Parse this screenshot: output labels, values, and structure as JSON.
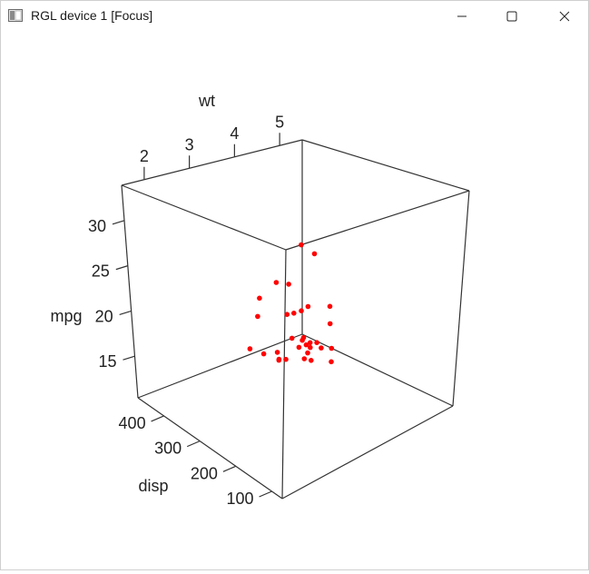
{
  "window": {
    "title": "RGL device 1 [Focus]",
    "icon": "rgl-window-icon",
    "controls": [
      "minimize-icon",
      "maximize-icon",
      "close-icon"
    ]
  },
  "colors": {
    "points": "#ff0000",
    "axes": "#333333",
    "text": "#222222"
  },
  "chart_data": {
    "type": "scatter",
    "title": "",
    "axes": {
      "wt": {
        "label": "wt",
        "ticks": [
          2,
          3,
          4,
          5
        ],
        "range": [
          1.5,
          5.5
        ]
      },
      "mpg": {
        "label": "mpg",
        "ticks": [
          15,
          20,
          25,
          30
        ],
        "range": [
          10.4,
          33.9
        ]
      },
      "disp": {
        "label": "disp",
        "ticks": [
          100,
          200,
          300,
          400
        ],
        "range": [
          71.1,
          472
        ]
      }
    },
    "points": [
      {
        "wt": 2.62,
        "mpg": 21.0,
        "disp": 160
      },
      {
        "wt": 2.875,
        "mpg": 21.0,
        "disp": 160
      },
      {
        "wt": 2.32,
        "mpg": 22.8,
        "disp": 108
      },
      {
        "wt": 3.215,
        "mpg": 21.4,
        "disp": 258
      },
      {
        "wt": 3.44,
        "mpg": 18.7,
        "disp": 360
      },
      {
        "wt": 3.46,
        "mpg": 18.1,
        "disp": 225
      },
      {
        "wt": 3.57,
        "mpg": 14.3,
        "disp": 360
      },
      {
        "wt": 3.19,
        "mpg": 24.4,
        "disp": 146.7
      },
      {
        "wt": 3.15,
        "mpg": 22.8,
        "disp": 140.8
      },
      {
        "wt": 3.44,
        "mpg": 19.2,
        "disp": 167.6
      },
      {
        "wt": 3.44,
        "mpg": 17.8,
        "disp": 167.6
      },
      {
        "wt": 4.07,
        "mpg": 16.4,
        "disp": 275.8
      },
      {
        "wt": 3.73,
        "mpg": 17.3,
        "disp": 275.8
      },
      {
        "wt": 3.78,
        "mpg": 15.2,
        "disp": 275.8
      },
      {
        "wt": 5.25,
        "mpg": 10.4,
        "disp": 472
      },
      {
        "wt": 5.424,
        "mpg": 10.4,
        "disp": 460
      },
      {
        "wt": 5.345,
        "mpg": 14.7,
        "disp": 440
      },
      {
        "wt": 2.2,
        "mpg": 32.4,
        "disp": 78.7
      },
      {
        "wt": 1.615,
        "mpg": 30.4,
        "disp": 75.7
      },
      {
        "wt": 1.835,
        "mpg": 33.9,
        "disp": 71.1
      },
      {
        "wt": 2.465,
        "mpg": 21.5,
        "disp": 120.1
      },
      {
        "wt": 3.52,
        "mpg": 15.5,
        "disp": 318
      },
      {
        "wt": 3.435,
        "mpg": 15.2,
        "disp": 304
      },
      {
        "wt": 3.84,
        "mpg": 13.3,
        "disp": 350
      },
      {
        "wt": 3.845,
        "mpg": 19.2,
        "disp": 400
      },
      {
        "wt": 1.935,
        "mpg": 27.3,
        "disp": 79
      },
      {
        "wt": 2.14,
        "mpg": 26.0,
        "disp": 120.3
      },
      {
        "wt": 1.513,
        "mpg": 30.4,
        "disp": 95.1
      },
      {
        "wt": 3.17,
        "mpg": 15.8,
        "disp": 351
      },
      {
        "wt": 2.77,
        "mpg": 19.7,
        "disp": 145
      },
      {
        "wt": 3.57,
        "mpg": 15.0,
        "disp": 301
      },
      {
        "wt": 2.78,
        "mpg": 21.4,
        "disp": 121
      }
    ]
  }
}
